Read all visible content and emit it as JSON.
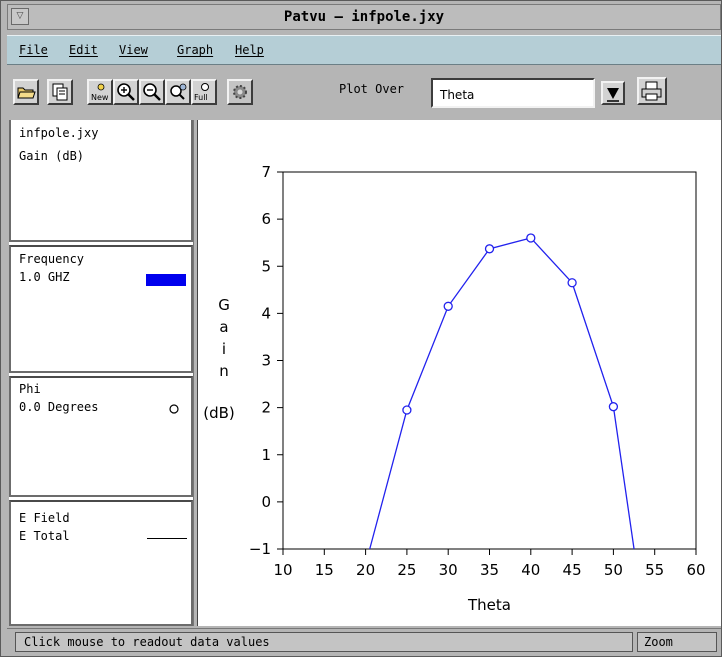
{
  "window": {
    "title": "Patvu – infpole.jxy"
  },
  "menubar": {
    "items": [
      "File",
      "Edit",
      "View",
      "Graph",
      "Help"
    ]
  },
  "toolbar": {
    "buttons": [
      "open-folder-icon",
      "copy-icon",
      "new-plot-icon",
      "zoom-in-icon",
      "zoom-out-icon",
      "pan-icon",
      "zoom-full-icon",
      "settings-gear-icon",
      "print-icon"
    ],
    "new_label": "New",
    "full_label": "Full",
    "plot_over_label": "Plot Over",
    "plot_over_value": "Theta"
  },
  "info_panel": {
    "file": {
      "name": "infpole.jxy",
      "quantity": "Gain (dB)"
    },
    "frequency": {
      "header": "Frequency",
      "value": "1.0 GHZ",
      "swatch_color": "#0000ee"
    },
    "phi": {
      "header": "Phi",
      "value": "0.0 Degrees",
      "marker": "circle"
    },
    "field": {
      "header": "E Field",
      "component": "E Total",
      "line_style": "solid"
    }
  },
  "chart_data": {
    "type": "line",
    "xlabel": "Theta",
    "ylabel_letters": [
      "G",
      "a",
      "i",
      "n"
    ],
    "ylabel_unit": "(dB)",
    "xlim": [
      10,
      60
    ],
    "ylim": [
      -1,
      7
    ],
    "xticks": [
      10,
      15,
      20,
      25,
      30,
      35,
      40,
      45,
      50,
      55,
      60
    ],
    "yticks": [
      -1,
      0,
      1,
      2,
      3,
      4,
      5,
      6,
      7
    ],
    "grid": false,
    "series": [
      {
        "color": "#2222ee",
        "marker": "circle",
        "x": [
          20.5,
          25,
          30,
          35,
          40,
          45,
          50,
          52.5
        ],
        "y": [
          -1,
          1.95,
          4.15,
          5.37,
          5.6,
          4.65,
          2.02,
          -1
        ]
      }
    ]
  },
  "statusbar": {
    "message": "Click mouse to readout data values",
    "mode": "Zoom"
  }
}
